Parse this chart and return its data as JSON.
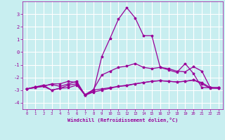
{
  "xlabel": "Windchill (Refroidissement éolien,°C)",
  "background_color": "#c8eef0",
  "grid_color": "#ffffff",
  "line_color": "#990099",
  "xlim": [
    -0.5,
    23.5
  ],
  "ylim": [
    -4.5,
    4.0
  ],
  "xticks": [
    0,
    1,
    2,
    3,
    4,
    5,
    6,
    7,
    8,
    9,
    10,
    11,
    12,
    13,
    14,
    15,
    16,
    17,
    18,
    19,
    20,
    21,
    22,
    23
  ],
  "yticks": [
    -4,
    -3,
    -2,
    -1,
    0,
    1,
    2,
    3
  ],
  "line1_x": [
    0,
    1,
    2,
    3,
    4,
    5,
    6,
    7,
    8,
    9,
    10,
    11,
    12,
    13,
    14,
    15,
    16,
    17,
    18,
    19,
    20,
    21,
    22,
    23
  ],
  "line1_y": [
    -2.9,
    -2.8,
    -2.7,
    -2.5,
    -2.5,
    -2.3,
    -2.4,
    -3.35,
    -2.95,
    -1.8,
    -1.5,
    -1.2,
    -1.1,
    -0.9,
    -1.2,
    -1.3,
    -1.2,
    -1.3,
    -1.5,
    -1.55,
    -1.15,
    -1.5,
    -2.8,
    -2.8
  ],
  "line2_x": [
    0,
    1,
    2,
    3,
    4,
    5,
    6,
    7,
    8,
    9,
    10,
    11,
    12,
    13,
    14,
    15,
    16,
    17,
    18,
    19,
    20,
    21,
    22,
    23
  ],
  "line2_y": [
    -2.9,
    -2.75,
    -2.6,
    -3.0,
    -2.85,
    -2.6,
    -2.5,
    -3.4,
    -3.0,
    -2.9,
    -2.8,
    -2.7,
    -2.6,
    -2.5,
    -2.4,
    -2.3,
    -2.25,
    -2.3,
    -2.35,
    -2.3,
    -2.2,
    -2.5,
    -2.85,
    -2.85
  ],
  "line3_x": [
    0,
    1,
    2,
    3,
    4,
    5,
    6,
    7,
    8,
    9,
    10,
    11,
    12,
    13,
    14,
    15,
    16,
    17,
    18,
    19,
    20,
    21,
    22,
    23
  ],
  "line3_y": [
    -2.9,
    -2.75,
    -2.7,
    -3.0,
    -2.85,
    -2.8,
    -2.6,
    -3.4,
    -3.15,
    -3.0,
    -2.85,
    -2.7,
    -2.65,
    -2.5,
    -2.4,
    -2.3,
    -2.25,
    -2.3,
    -2.35,
    -2.3,
    -2.2,
    -2.4,
    -2.8,
    -2.85
  ],
  "line4_x": [
    0,
    1,
    2,
    3,
    4,
    5,
    6,
    7,
    8,
    9,
    10,
    11,
    12,
    13,
    14,
    15,
    16,
    17,
    18,
    19,
    20,
    21,
    22,
    23
  ],
  "line4_y": [
    -2.9,
    -2.8,
    -2.65,
    -2.55,
    -2.7,
    -2.5,
    -2.3,
    -3.4,
    -3.1,
    -0.35,
    1.1,
    2.6,
    3.5,
    2.7,
    1.3,
    1.3,
    -1.2,
    -1.4,
    -1.6,
    -0.9,
    -1.7,
    -2.8,
    -2.8,
    -2.8
  ]
}
